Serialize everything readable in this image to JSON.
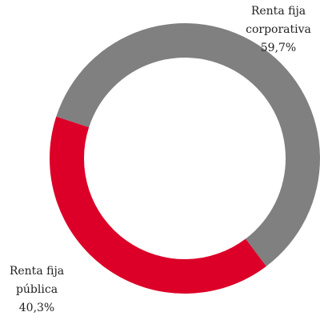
{
  "chart_data": {
    "type": "donut",
    "categories": [
      "Renta fija corporativa",
      "Renta fija pública"
    ],
    "values": [
      59.7,
      40.3
    ],
    "value_labels": [
      "59,7%",
      "40,3%"
    ],
    "colors": [
      "#808080",
      "#dc0028"
    ]
  }
}
